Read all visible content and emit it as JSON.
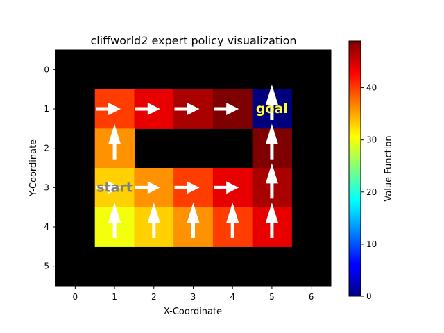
{
  "chart_data": {
    "type": "heatmap",
    "title": "cliffworld2 expert policy visualization",
    "xlabel": "X-Coordinate",
    "ylabel": "Y-Coordinate",
    "colorbar_label": "Value Function",
    "x_ticks": [
      "0",
      "1",
      "2",
      "3",
      "4",
      "5",
      "6"
    ],
    "y_ticks": [
      "0",
      "1",
      "2",
      "3",
      "4",
      "5"
    ],
    "colorbar_ticks": [
      0,
      10,
      20,
      30,
      40
    ],
    "colorbar_range": [
      0,
      49
    ],
    "colormap": "jet",
    "background_color": "#000000",
    "cells": [
      {
        "x": 1,
        "y": 1,
        "value": 40
      },
      {
        "x": 2,
        "y": 1,
        "value": 44
      },
      {
        "x": 3,
        "y": 1,
        "value": 47
      },
      {
        "x": 4,
        "y": 1,
        "value": 49
      },
      {
        "x": 5,
        "y": 1,
        "value": 0
      },
      {
        "x": 1,
        "y": 2,
        "value": 36
      },
      {
        "x": 5,
        "y": 2,
        "value": 49
      },
      {
        "x": 1,
        "y": 3,
        "value": 33
      },
      {
        "x": 2,
        "y": 3,
        "value": 36
      },
      {
        "x": 3,
        "y": 3,
        "value": 40
      },
      {
        "x": 4,
        "y": 3,
        "value": 44
      },
      {
        "x": 5,
        "y": 3,
        "value": 47
      },
      {
        "x": 1,
        "y": 4,
        "value": 30
      },
      {
        "x": 2,
        "y": 4,
        "value": 33
      },
      {
        "x": 3,
        "y": 4,
        "value": 36
      },
      {
        "x": 4,
        "y": 4,
        "value": 40
      },
      {
        "x": 5,
        "y": 4,
        "value": 44
      }
    ],
    "arrows": [
      {
        "x": 1,
        "y": 1,
        "dir": "right"
      },
      {
        "x": 2,
        "y": 1,
        "dir": "right"
      },
      {
        "x": 3,
        "y": 1,
        "dir": "right"
      },
      {
        "x": 4,
        "y": 1,
        "dir": "right"
      },
      {
        "x": 5,
        "y": 1,
        "dir": "up"
      },
      {
        "x": 1,
        "y": 2,
        "dir": "up"
      },
      {
        "x": 5,
        "y": 2,
        "dir": "up"
      },
      {
        "x": 1,
        "y": 3,
        "dir": "right"
      },
      {
        "x": 2,
        "y": 3,
        "dir": "right"
      },
      {
        "x": 3,
        "y": 3,
        "dir": "right"
      },
      {
        "x": 4,
        "y": 3,
        "dir": "right"
      },
      {
        "x": 5,
        "y": 3,
        "dir": "up"
      },
      {
        "x": 1,
        "y": 4,
        "dir": "up"
      },
      {
        "x": 2,
        "y": 4,
        "dir": "up"
      },
      {
        "x": 3,
        "y": 4,
        "dir": "up"
      },
      {
        "x": 4,
        "y": 4,
        "dir": "up"
      },
      {
        "x": 5,
        "y": 4,
        "dir": "up"
      }
    ],
    "labels": [
      {
        "x": 5,
        "y": 1,
        "text": "goal",
        "color": "#FFFF33"
      },
      {
        "x": 1,
        "y": 3,
        "text": "start",
        "color": "#808080"
      }
    ]
  }
}
